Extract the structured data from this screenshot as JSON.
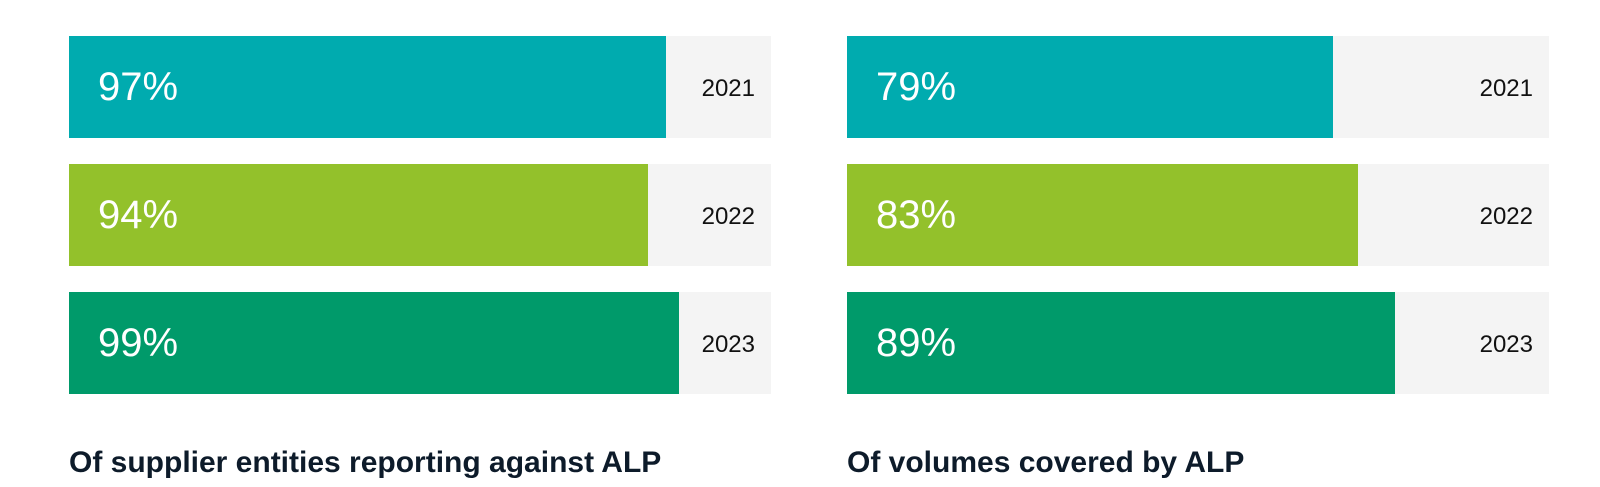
{
  "chart_data": [
    {
      "type": "bar",
      "orientation": "horizontal",
      "title": "Of supplier entities reporting against ALP",
      "categories": [
        "2021",
        "2022",
        "2023"
      ],
      "values": [
        97,
        94,
        99
      ],
      "value_labels": [
        "97%",
        "94%",
        "99%"
      ],
      "colors": [
        "#00abaf",
        "#93c12b",
        "#009a6a"
      ],
      "track_color": "#f4f4f4",
      "xlim": [
        0,
        114
      ]
    },
    {
      "type": "bar",
      "orientation": "horizontal",
      "title": "Of volumes covered by ALP",
      "categories": [
        "2021",
        "2022",
        "2023"
      ],
      "values": [
        79,
        83,
        89
      ],
      "value_labels": [
        "79%",
        "83%",
        "89%"
      ],
      "colors": [
        "#00abaf",
        "#93c12b",
        "#009a6a"
      ],
      "track_color": "#f4f4f4",
      "xlim": [
        0,
        114
      ]
    }
  ]
}
